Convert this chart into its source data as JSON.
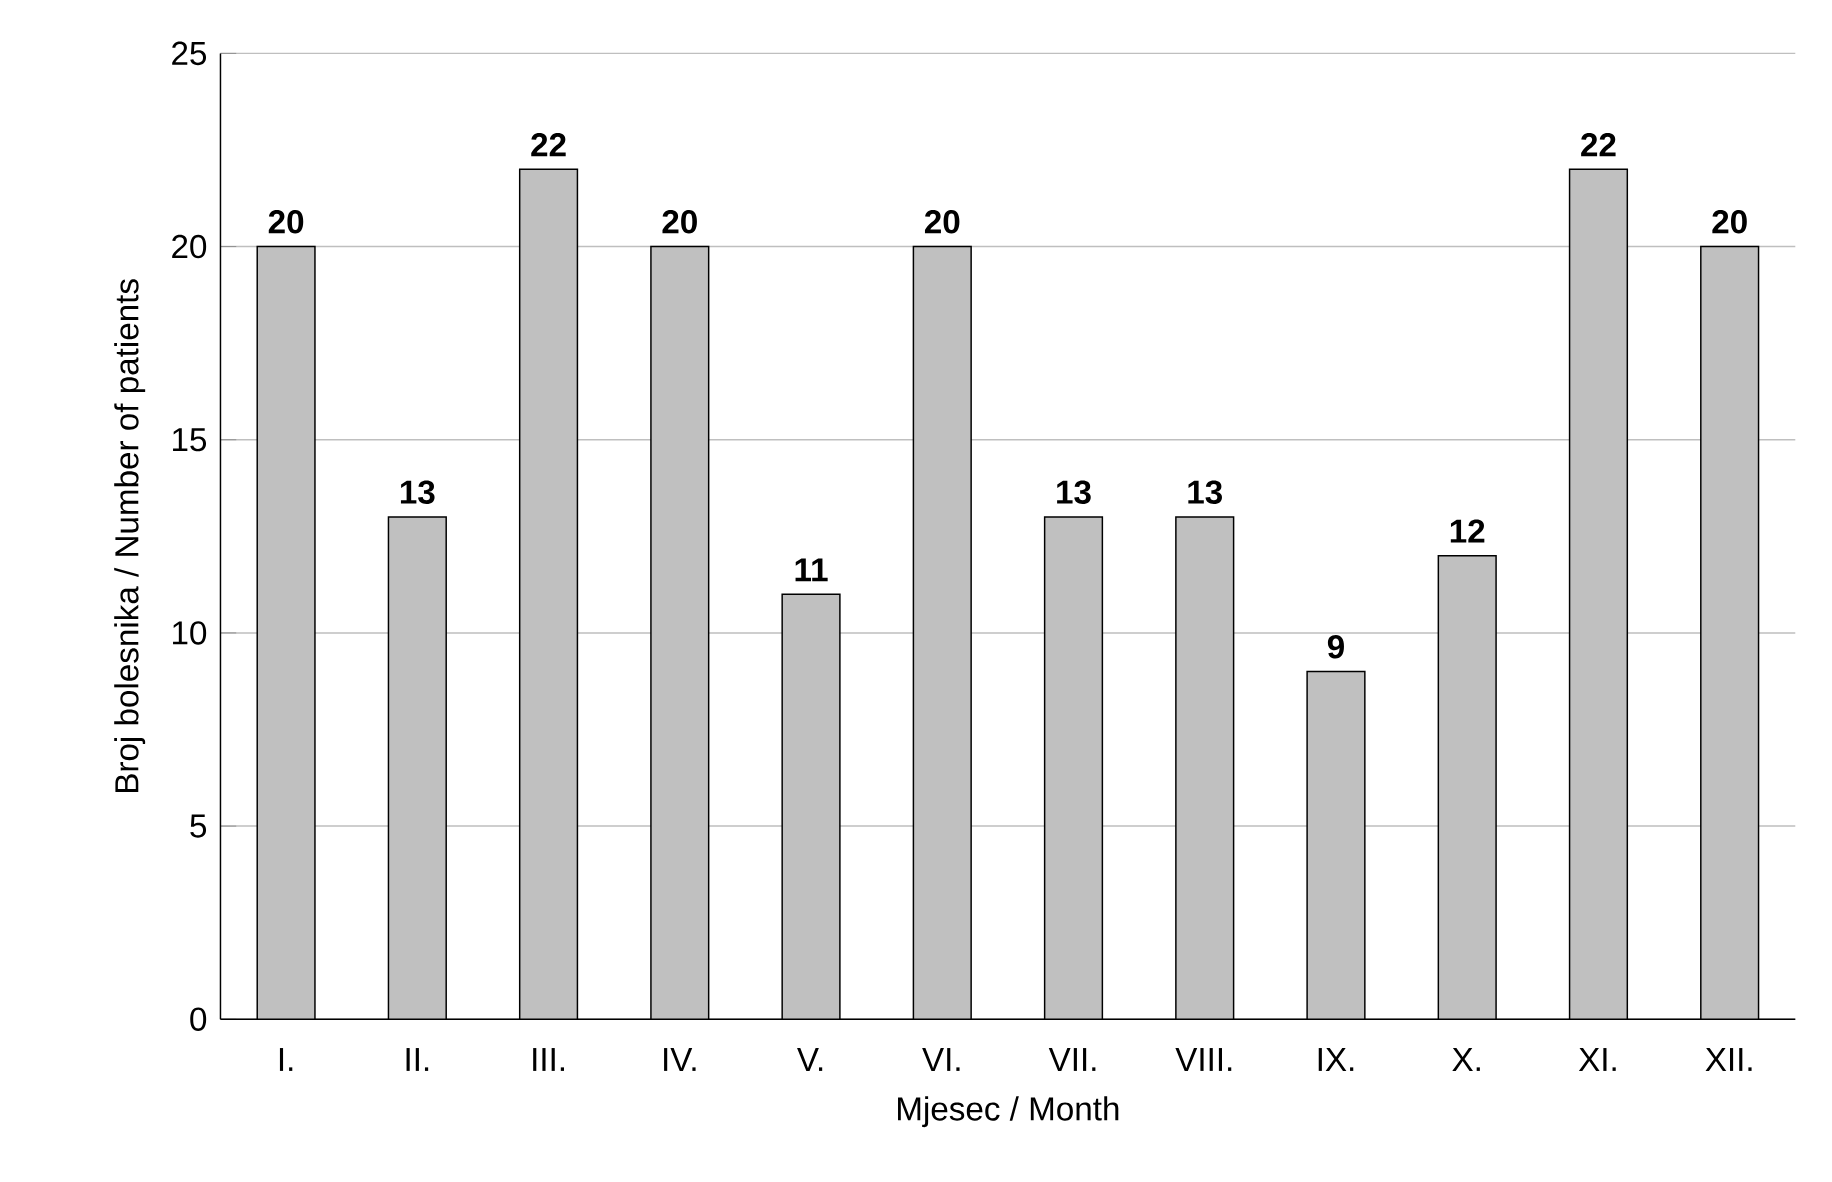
{
  "chart_data": {
    "type": "bar",
    "xlabel": "Mjesec / Month",
    "ylabel": "Broj bolesnika / Number of patients",
    "categories": [
      "I.",
      "II.",
      "III.",
      "IV.",
      "V.",
      "VI.",
      "VII.",
      "VIII.",
      "IX.",
      "X.",
      "XI.",
      "XII."
    ],
    "values": [
      20,
      13,
      22,
      20,
      11,
      20,
      13,
      13,
      9,
      12,
      22,
      20
    ],
    "color": "#c0c0c0",
    "ylim": [
      0,
      25
    ],
    "yticks": [
      0,
      5,
      10,
      15,
      20,
      25
    ],
    "grid": "y",
    "data_labels": true
  }
}
